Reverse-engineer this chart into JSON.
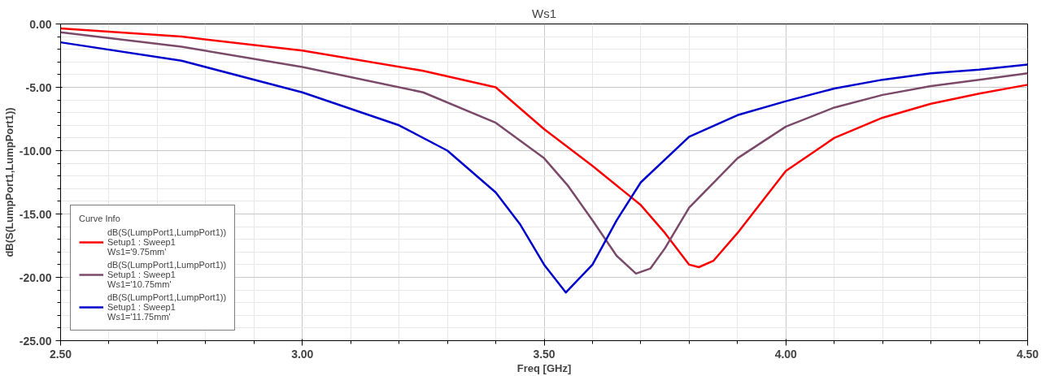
{
  "chart_data": {
    "type": "line",
    "title": "Ws1",
    "xlabel": "Freq [GHz]",
    "ylabel": "dB(S(LumpPort1,LumpPort1))",
    "legend_title": "Curve Info",
    "xlim": [
      2.5,
      4.5
    ],
    "ylim": [
      -25,
      0
    ],
    "xticks": [
      {
        "value": 2.5,
        "label": "2.50"
      },
      {
        "value": 3.0,
        "label": "3.00"
      },
      {
        "value": 3.5,
        "label": "3.50"
      },
      {
        "value": 4.0,
        "label": "4.00"
      },
      {
        "value": 4.5,
        "label": "4.50"
      }
    ],
    "yticks": [
      {
        "value": -25,
        "label": "-25.00"
      },
      {
        "value": -20,
        "label": "-20.00"
      },
      {
        "value": -15,
        "label": "-15.00"
      },
      {
        "value": -10,
        "label": "-10.00"
      },
      {
        "value": -5,
        "label": "-5.00"
      },
      {
        "value": 0,
        "label": "0.00"
      }
    ],
    "grid": true,
    "legend": "bottom left",
    "line_style": "solid",
    "marker": "none",
    "series": [
      {
        "name": "dB(S(LumpPort1,LumpPort1))\nSetup1 : Sweep1\nWs1='9.75mm'",
        "color": "#ff0000",
        "x": [
          2.5,
          2.75,
          3.0,
          3.25,
          3.4,
          3.5,
          3.6,
          3.7,
          3.75,
          3.8,
          3.82,
          3.85,
          3.9,
          4.0,
          4.1,
          4.2,
          4.3,
          4.4,
          4.5
        ],
        "values": [
          -0.35,
          -1.0,
          -2.1,
          -3.7,
          -5.0,
          -8.3,
          -11.2,
          -14.3,
          -16.5,
          -19.0,
          -19.2,
          -18.7,
          -16.5,
          -11.6,
          -9.0,
          -7.4,
          -6.3,
          -5.5,
          -4.8
        ]
      },
      {
        "name": "dB(S(LumpPort1,LumpPort1))\nSetup1 : Sweep1\nWs1='10.75mm'",
        "color": "#7b4a6b",
        "x": [
          2.5,
          2.75,
          3.0,
          3.25,
          3.4,
          3.5,
          3.55,
          3.6,
          3.65,
          3.69,
          3.72,
          3.75,
          3.8,
          3.9,
          4.0,
          4.1,
          4.2,
          4.3,
          4.4,
          4.5
        ],
        "values": [
          -0.65,
          -1.8,
          -3.4,
          -5.4,
          -7.8,
          -10.6,
          -12.8,
          -15.5,
          -18.3,
          -19.7,
          -19.3,
          -17.7,
          -14.5,
          -10.6,
          -8.1,
          -6.6,
          -5.6,
          -4.9,
          -4.4,
          -3.9
        ]
      },
      {
        "name": "dB(S(LumpPort1,LumpPort1))\nSetup1 : Sweep1\nWs1='11.75mm'",
        "color": "#0000cc",
        "x": [
          2.5,
          2.75,
          3.0,
          3.2,
          3.3,
          3.4,
          3.45,
          3.5,
          3.545,
          3.6,
          3.65,
          3.7,
          3.8,
          3.9,
          4.0,
          4.1,
          4.2,
          4.3,
          4.4,
          4.5
        ],
        "values": [
          -1.45,
          -2.9,
          -5.4,
          -8.0,
          -10.0,
          -13.3,
          -15.8,
          -19.0,
          -21.2,
          -19.0,
          -15.5,
          -12.5,
          -8.9,
          -7.2,
          -6.1,
          -5.1,
          -4.4,
          -3.9,
          -3.6,
          -3.2
        ]
      }
    ]
  }
}
